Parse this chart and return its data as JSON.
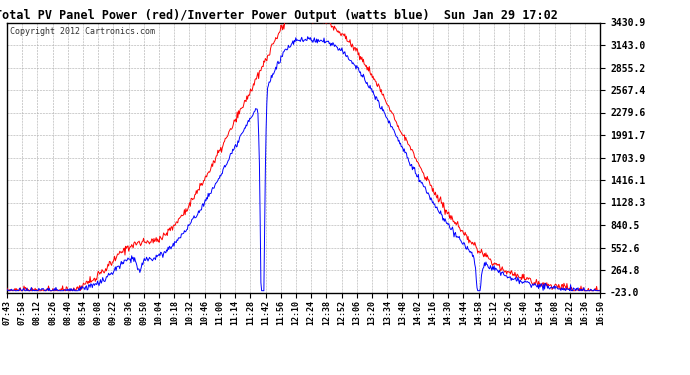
{
  "title": "Total PV Panel Power (red)/Inverter Power Output (watts blue)  Sun Jan 29 17:02",
  "copyright": "Copyright 2012 Cartronics.com",
  "y_ticks": [
    -23.0,
    264.8,
    552.6,
    840.5,
    1128.3,
    1416.1,
    1703.9,
    1991.7,
    2279.6,
    2567.4,
    2855.2,
    3143.0,
    3430.9
  ],
  "x_labels": [
    "07:43",
    "07:58",
    "08:12",
    "08:26",
    "08:40",
    "08:54",
    "09:08",
    "09:22",
    "09:36",
    "09:50",
    "10:04",
    "10:18",
    "10:32",
    "10:46",
    "11:00",
    "11:14",
    "11:28",
    "11:42",
    "11:56",
    "12:10",
    "12:24",
    "12:38",
    "12:52",
    "13:06",
    "13:20",
    "13:34",
    "13:48",
    "14:02",
    "14:16",
    "14:30",
    "14:44",
    "14:58",
    "15:12",
    "15:26",
    "15:40",
    "15:54",
    "16:08",
    "16:22",
    "16:36",
    "16:50"
  ],
  "bg_color": "#ffffff",
  "plot_bg_color": "#ffffff",
  "grid_color": "#aaaaaa",
  "red_color": "#ff0000",
  "blue_color": "#0000ff",
  "title_color": "#000000",
  "border_color": "#000000",
  "ylim": [
    -23.0,
    3430.9
  ]
}
